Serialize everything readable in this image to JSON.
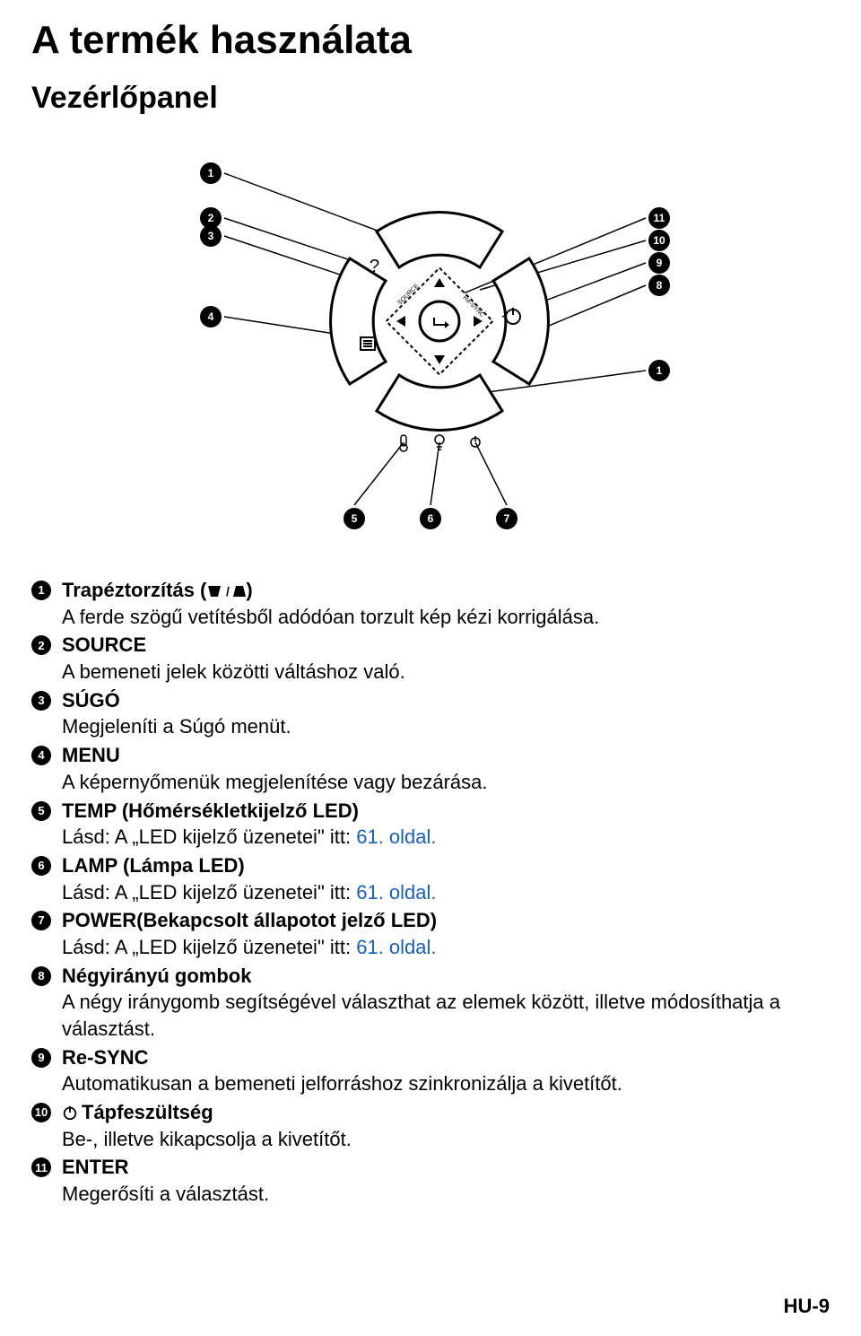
{
  "title": "A termék használata",
  "subtitle": "Vezérlőpanel",
  "footer": "HU-9",
  "link_color": "#1a5fb4",
  "diagram": {
    "callout_numbers_left": [
      "1",
      "2",
      "3",
      "4"
    ],
    "callout_numbers_right": [
      "11",
      "10",
      "9",
      "8",
      "1"
    ],
    "callout_numbers_bottom": [
      "5",
      "6",
      "7"
    ]
  },
  "items": [
    {
      "num": "1",
      "title_parts": [
        "Trapéztorzítás (",
        "TRAPEZ",
        ")"
      ],
      "desc": "A ferde szögű vetítésből adódóan torzult kép kézi korrigálása."
    },
    {
      "num": "2",
      "title": "SOURCE",
      "desc": "A bemeneti jelek közötti váltáshoz való."
    },
    {
      "num": "3",
      "title": "SÚGÓ",
      "desc": "Megjeleníti a Súgó menüt."
    },
    {
      "num": "4",
      "title": "MENU",
      "desc": "A képernyőmenük megjelenítése vagy bezárása."
    },
    {
      "num": "5",
      "title": "TEMP (Hőmérsékletkijelző LED)",
      "desc_prefix": "Lásd: A „LED kijelző üzenetei\" itt: ",
      "link": "61. oldal."
    },
    {
      "num": "6",
      "title": "LAMP (Lámpa LED)",
      "desc_prefix": "Lásd: A „LED kijelző üzenetei\" itt: ",
      "link": "61. oldal."
    },
    {
      "num": "7",
      "title": "POWER(Bekapcsolt állapotot jelző LED)",
      "desc_prefix": "Lásd: A „LED kijelző üzenetei\" itt: ",
      "link": "61. oldal."
    },
    {
      "num": "8",
      "title": "Négyirányú gombok",
      "desc": "A négy iránygomb segítségével választhat az elemek között, illetve módosíthatja a választást."
    },
    {
      "num": "9",
      "title": "Re-SYNC",
      "desc": "Automatikusan a bemeneti jelforráshoz szinkronizálja a kivetítőt."
    },
    {
      "num": "10",
      "title_prefix_icon": "power",
      "title": "Tápfeszültség",
      "desc": "Be-, illetve kikapcsolja a kivetítőt."
    },
    {
      "num": "11",
      "title": "ENTER",
      "desc": "Megerősíti a választást."
    }
  ]
}
